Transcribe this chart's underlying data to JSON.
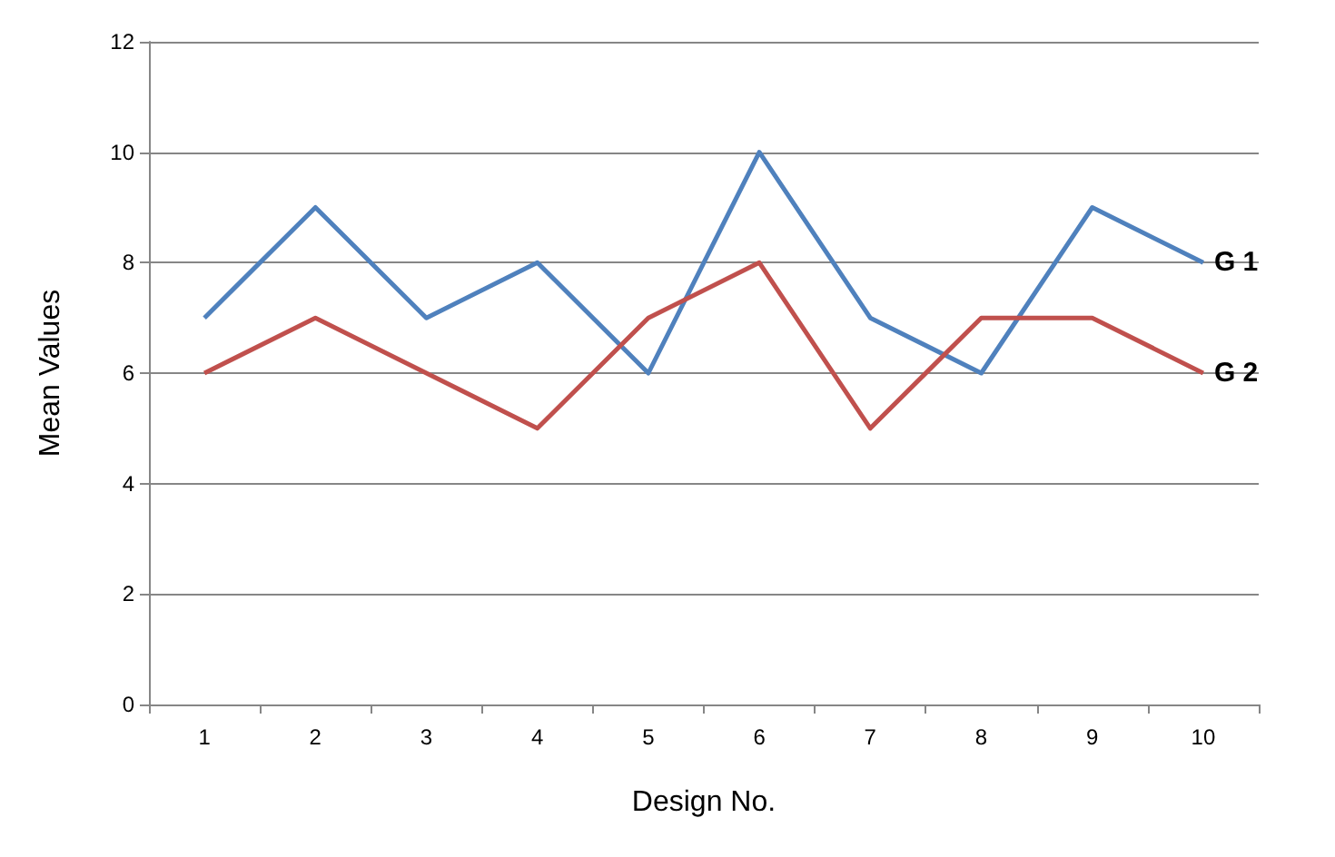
{
  "chart_data": {
    "type": "line",
    "xlabel": "Design No.",
    "ylabel": "Mean Values",
    "categories": [
      "1",
      "2",
      "3",
      "4",
      "5",
      "6",
      "7",
      "8",
      "9",
      "10"
    ],
    "series": [
      {
        "name": "G 1",
        "color": "#4f81bd",
        "values": [
          7,
          9,
          7,
          8,
          6,
          10,
          7,
          6,
          9,
          8
        ]
      },
      {
        "name": "G 2",
        "color": "#c0504d",
        "values": [
          6,
          7,
          6,
          5,
          7,
          8,
          5,
          7,
          7,
          6
        ]
      }
    ],
    "ylim": [
      0,
      12
    ],
    "yticks": [
      0,
      2,
      4,
      6,
      8,
      10,
      12
    ],
    "grid": "y",
    "marker": "none"
  }
}
